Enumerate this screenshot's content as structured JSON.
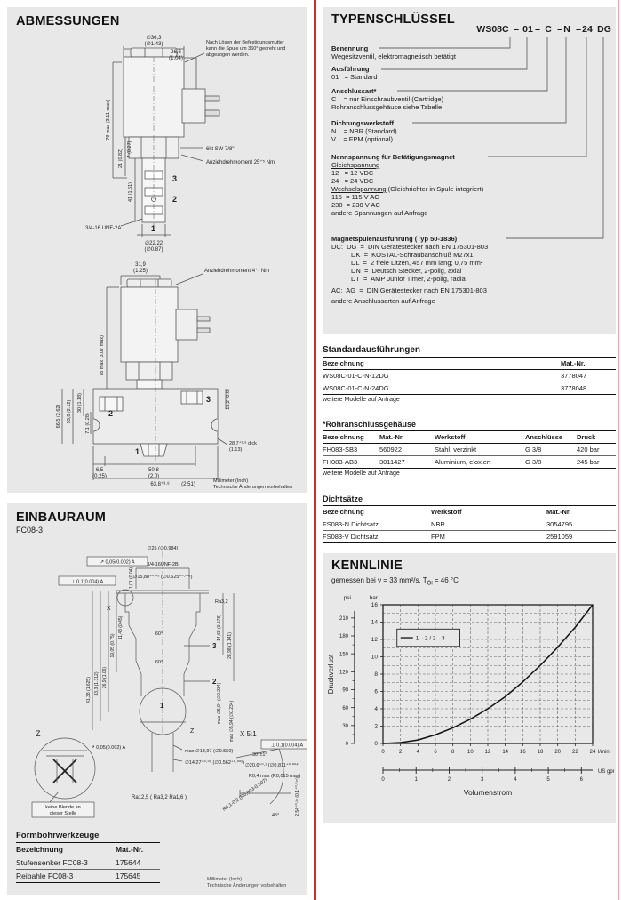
{
  "abm": {
    "title": "ABMESSUNGEN",
    "note1": "Nach Lösen der Befestigungsmutter",
    "note2": "kann die Spule um 360° gedreht und",
    "note3": "abgezogen werden.",
    "d36": "∅36,3",
    "d36i": "(∅1.43)",
    "w266": "26,6",
    "w266i": "(1.04)",
    "h79": "79 max (3.11 max)",
    "h21": "21 (0.82)",
    "h7": "7 (0.27)",
    "hex": "6kt SW 7/8\"",
    "tq1": "Anziehdrehmoment 25⁺⁵ Nm",
    "h41": "41 (1.61)",
    "p1": "1",
    "p2": "2",
    "p3": "3",
    "thr": "3/4-16 UNF-2A",
    "d2222": "∅22,22",
    "d2222i": "(∅0.87)",
    "w319": "31,9",
    "w319i": "(1.25)",
    "tq2": "Anziehdrehmoment 4⁺¹ Nm",
    "h78": "78 max (3.07 max)",
    "h665": "66,5 (2.62)",
    "h538": "53,8 (2.12)",
    "h30": "30 (1.18)",
    "h71": "7,1 (0.28)",
    "h152": "15,2 (0.6)",
    "thick": "28,7⁺¹·⁶ dick",
    "thicki": "(1.13)",
    "b65": "6,5",
    "b65i": "(0.25)",
    "b508": "50,8",
    "b508i": "(2.0)",
    "b638": "63,8⁺³·⁸",
    "b638i": "(2.51)",
    "foot1": "Millimeter (Inch)",
    "foot2": "Technische Änderungen vorbehalten"
  },
  "einb": {
    "title": "EINBAURAUM",
    "sub": "FC08-3",
    "gd1": "↗ 0,05(0.002) A",
    "gd2": "⊥ 0,1(0.004) A",
    "d25": "∅25 (∅0.984)",
    "thr": "3/4-16UNF-2B",
    "d1588": "∅15,88⁺⁰·⁰⁵ (∅0.625⁺⁰·⁰⁰²)",
    "h101": "1,01 (0.04)",
    "s1": "41,38 (1.625)",
    "s2": "33,3 (1.312)",
    "s3": "26,9 (1.06)",
    "s4": "19,05 (0.75)",
    "s5": "11,43 (0.45)",
    "a60a": "60°",
    "a60b": "60°",
    "ra32": "Ra3,2",
    "r1468": "14,68 (0.578)",
    "r2898": "28,98 (1.141)",
    "d594a": "max ∅5,94 (∅0.234)",
    "d594b": "max ∅5,94 (∅0.234)",
    "lx": "X",
    "lz": "Z",
    "lz2": "Z",
    "p1": "1",
    "p2": "2",
    "p3": "3",
    "d1397": "max ∅13,97 (∅0.550)",
    "d1427": "∅14,27⁺⁰·⁰⁵ (∅0.562⁺⁰·⁰⁰²)",
    "gd3": "↗ 0,05(0.002) A",
    "detx": "X 5:1",
    "a30": "30°±1°",
    "d206": "∅20,6⁺⁰·¹ (∅0.811⁺⁰·⁰⁰⁴)",
    "r04": "R0,4 max (R0,015 max)",
    "t254": "2,54⁺⁰·³⁸ (0,1⁺⁰·⁰¹⁵)",
    "r0102": "R0,1-0,2 (R0,003-0,007)",
    "a45": "45°",
    "gd4": "⊥ 0,1(0.004) A",
    "blende1": "keine Blende an",
    "blende2": "dieser Stelle",
    "ra": "Ra12,5 ( Ra3,2  Ra1,6 )",
    "foot1": "Millimeter (Inch)",
    "foot2": "Technische Änderungen vorbehalten"
  },
  "typ": {
    "title": "TYPENSCHLÜSSEL",
    "code": [
      "WS08C",
      "01",
      "C",
      "N",
      "24",
      "DG"
    ],
    "sep": "–",
    "ben_t": "Benennung",
    "ben_1": "Wegesitzventil, elektromagnetisch betätigt",
    "aus_t": "Ausführung",
    "aus_1": "01   = Standard",
    "ans_t": "Anschlussart*",
    "ans_1": "C    = nur Einschraubventil (Cartridge)",
    "ans_2": "Rohranschlussgehäuse siehe Tabelle",
    "dic_t": "Dichtungswerkstoff",
    "dic_1": "N    = NBR (Standard)",
    "dic_2": "V    = FPM (optional)",
    "nen_t": "Nennspannung für Betätigungsmagnet",
    "nen_g": "Gleichspannung",
    "nen_1": "12   = 12 VDC",
    "nen_2": "24   = 24 VDC",
    "nen_w": "Wechselspannung",
    "nen_w2": " (Gleichrichter in Spule integriert)",
    "nen_3": "115  = 115 V AC",
    "nen_4": "230  = 230 V AC",
    "nen_5": "andere Spannungen auf Anfrage",
    "mag_t": "Magnetspulenausführung (Typ 50-1836)",
    "mag_1": "DC:  DG  =  DIN Gerätestecker nach EN 175301-803",
    "mag_2": "DK  =  KOSTAL-Schraubanschluß M27x1",
    "mag_3": "DL  =  2 freie Litzen, 457 mm lang; 0,75 mm²",
    "mag_4": "DN  =  Deutsch Stecker, 2-polig, axial",
    "mag_5": "DT  =  AMP Junior Timer, 2-polig, radial",
    "mag_6": "AC:  AG  =  DIN Gerätestecker nach EN 175301-803",
    "mag_7": "andere Anschlussarten auf Anfrage"
  },
  "tables": {
    "std": {
      "title": "Standardausführungen",
      "headers": [
        "Bezeichnung",
        "Mat.-Nr."
      ],
      "rows": [
        [
          "WS08C-01-C-N-12DG",
          "3778047"
        ],
        [
          "WS08C-01-C-N-24DG",
          "3778048"
        ]
      ],
      "note": "weitere Modelle auf Anfrage"
    },
    "rohr": {
      "title": "*Rohranschlussgehäuse",
      "headers": [
        "Bezeichnung",
        "Mat.-Nr.",
        "Werkstoff",
        "Anschlüsse",
        "Druck"
      ],
      "rows": [
        [
          "FH083-SB3",
          "560922",
          "Stahl, verzinkt",
          "G 3/8",
          "420 bar"
        ],
        [
          "FH083-AB3",
          "3011427",
          "Aluminium, eloxiert",
          "G 3/8",
          "245 bar"
        ]
      ],
      "note": "weitere Modelle auf Anfrage"
    },
    "dicht": {
      "title": "Dichtsätze",
      "headers": [
        "Bezeichnung",
        "Werkstoff",
        "Mat.-Nr."
      ],
      "rows": [
        [
          "FS083-N Dichtsatz",
          "NBR",
          "3054795"
        ],
        [
          "FS083-V Dichtsatz",
          "FPM",
          "2591059"
        ]
      ]
    },
    "form": {
      "title": "Formbohrwerkzeuge",
      "headers": [
        "Bezeichnung",
        "Mat.-Nr."
      ],
      "rows": [
        [
          "Stufensenker FC08-3",
          "175644"
        ],
        [
          "Reibahle FC08-3",
          "175645"
        ]
      ]
    }
  },
  "kennlinie": {
    "title": "KENNLINIE",
    "sub_pre": "gemessen bei ν = 33 mm²/s, T",
    "sub_sub": "Öl",
    "sub_post": " = 46 °C"
  },
  "chart_data": {
    "type": "line",
    "title": "KENNLINIE",
    "xlabel": "Volumenstrom",
    "ylabel": "Druckverlust",
    "x_unit": "l/min",
    "x_unit2": "US gpm",
    "y_unit": "bar",
    "y_unit2": "psi",
    "xlim": [
      0,
      24
    ],
    "ylim": [
      0,
      16
    ],
    "x_ticks": [
      0,
      2,
      4,
      6,
      8,
      10,
      12,
      14,
      16,
      18,
      20,
      22,
      24
    ],
    "y_ticks": [
      0,
      2,
      4,
      6,
      8,
      10,
      12,
      14,
      16
    ],
    "psi_ticks": [
      0,
      30,
      60,
      90,
      120,
      150,
      180,
      210
    ],
    "gpm_ticks": [
      0,
      1,
      2,
      3,
      4,
      5,
      6
    ],
    "lmin_per_gpm": 3.785,
    "grid": "dashed",
    "legend": "1→2 / 2→3",
    "legend_position": "upper-left",
    "series": [
      {
        "name": "1→2 / 2→3",
        "x": [
          0,
          2,
          4,
          6,
          8,
          10,
          12,
          14,
          16,
          18,
          20,
          22,
          24
        ],
        "y": [
          0,
          0.1,
          0.4,
          1.0,
          1.8,
          2.8,
          4.0,
          5.4,
          7.1,
          9.0,
          11.1,
          13.4,
          16.0
        ]
      }
    ]
  }
}
